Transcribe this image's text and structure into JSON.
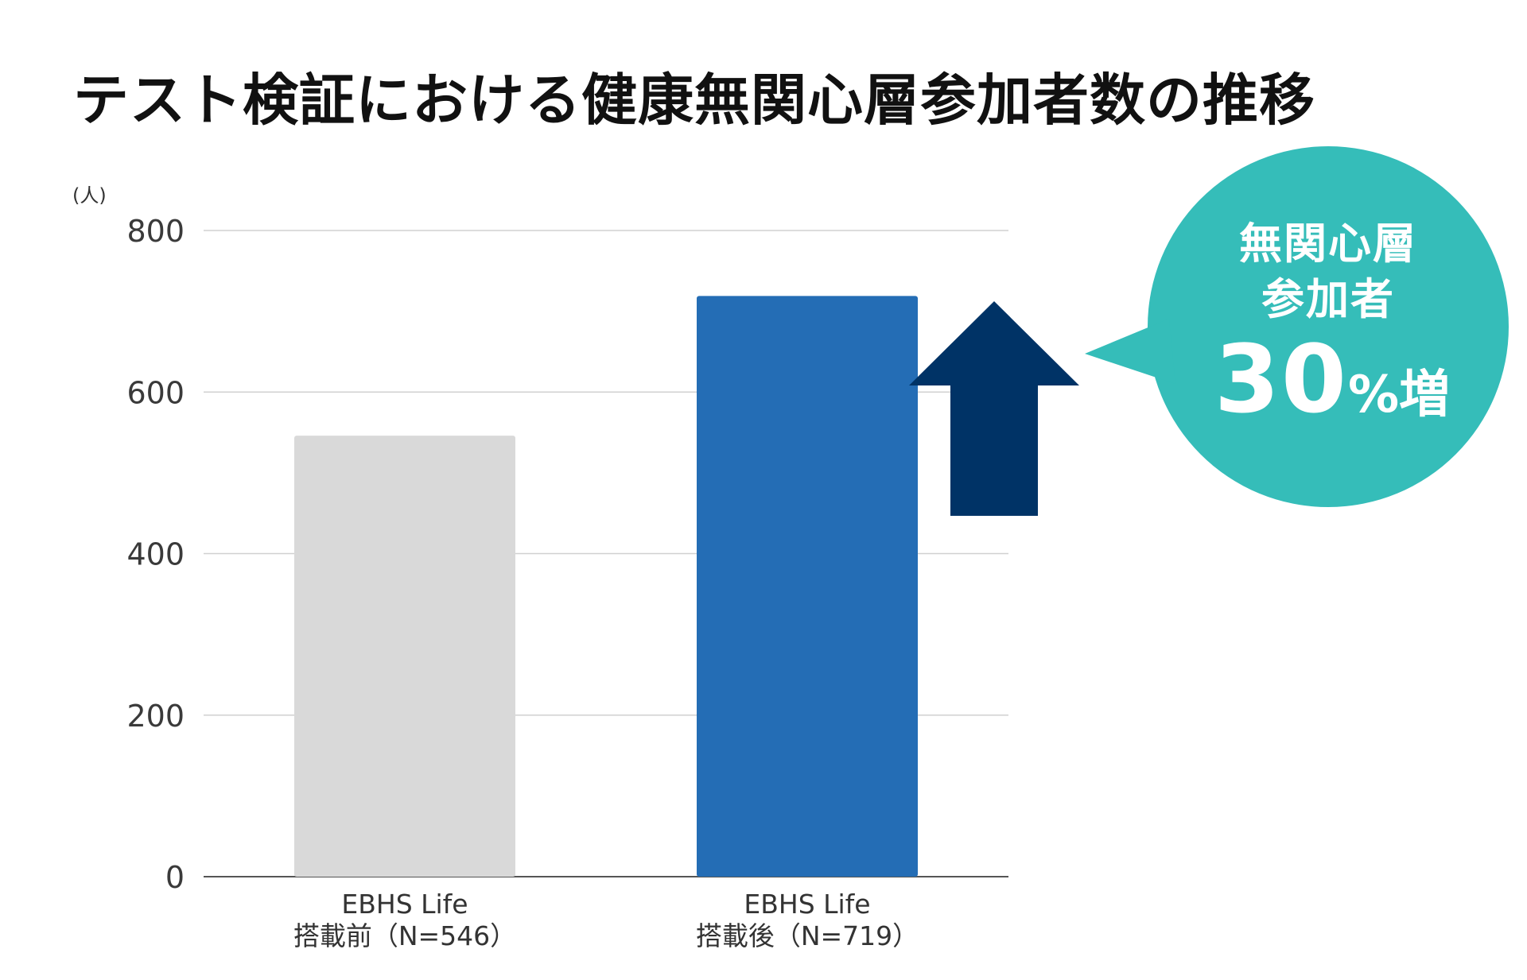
{
  "title": "テスト検証における健康無関心層参加者数の推移",
  "chart_data": {
    "type": "bar",
    "title": "テスト検証における健康無関心層参加者数の推移",
    "ylabel": "(人)",
    "xlabel": "",
    "ylim": [
      0,
      800
    ],
    "yticks": [
      0,
      200,
      400,
      600,
      800
    ],
    "grid": true,
    "categories": [
      [
        "EBHS Life",
        "搭載前（N=546）"
      ],
      [
        "EBHS Life",
        "搭載後（N=719）"
      ]
    ],
    "values": [
      546,
      719
    ],
    "bar_colors": [
      "#d9d9d9",
      "#246db5"
    ]
  },
  "callout": {
    "line1": "無関心層",
    "line2": "参加者",
    "number": "30",
    "unit": "%増",
    "bubble_color": "#35bdb9",
    "arrow_color": "#003366"
  }
}
